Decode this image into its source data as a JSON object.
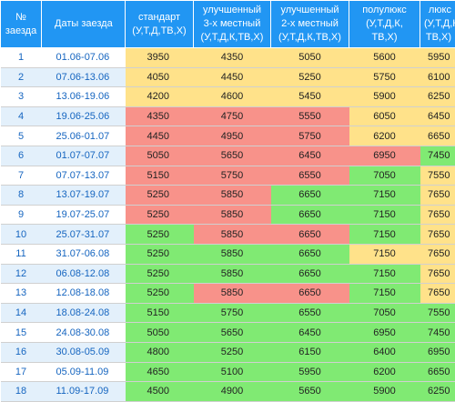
{
  "colors": {
    "header": "#2196f3",
    "yellow": "#ffe28a",
    "red": "#f8928a",
    "green": "#80ea73",
    "zebra": "#e3f0fb"
  },
  "headers": {
    "num": [
      "№",
      "заезда"
    ],
    "dates": "Даты заезда",
    "std": [
      "стандарт",
      "(У,Т,Д,ТВ,Х)"
    ],
    "imp3": [
      "улучшенный",
      "3-х местный",
      "(У,Т,Д,К,ТВ,Х)"
    ],
    "imp2": [
      "улучшенный",
      "2-х местный",
      "(У,Т,Д,К,ТВ,Х)"
    ],
    "semi": [
      "полулюкс",
      "(У,Т,Д,К,",
      "ТВ,Х)"
    ],
    "lux": [
      "люкс (У,Т,Д,К,",
      "ТВ,Х)"
    ]
  },
  "rows": [
    {
      "num": "1",
      "dates": "01.06-07.06",
      "std": "3950",
      "imp3": "4350",
      "imp2": "5050",
      "semi": "5600",
      "lux": "5950"
    },
    {
      "num": "2",
      "dates": "07.06-13.06",
      "std": "4050",
      "imp3": "4450",
      "imp2": "5250",
      "semi": "5750",
      "lux": "6100"
    },
    {
      "num": "3",
      "dates": "13.06-19.06",
      "std": "4200",
      "imp3": "4600",
      "imp2": "5450",
      "semi": "5900",
      "lux": "6250"
    },
    {
      "num": "4",
      "dates": "19.06-25.06",
      "std": "4350",
      "imp3": "4750",
      "imp2": "5550",
      "semi": "6050",
      "lux": "6450"
    },
    {
      "num": "5",
      "dates": "25.06-01.07",
      "std": "4450",
      "imp3": "4950",
      "imp2": "5750",
      "semi": "6200",
      "lux": "6650"
    },
    {
      "num": "6",
      "dates": "01.07-07.07",
      "std": "5050",
      "imp3": "5650",
      "imp2": "6450",
      "semi": "6950",
      "lux": "7450"
    },
    {
      "num": "7",
      "dates": "07.07-13.07",
      "std": "5150",
      "imp3": "5750",
      "imp2": "6550",
      "semi": "7050",
      "lux": "7550"
    },
    {
      "num": "8",
      "dates": "13.07-19.07",
      "std": "5250",
      "imp3": "5850",
      "imp2": "6650",
      "semi": "7150",
      "lux": "7650"
    },
    {
      "num": "9",
      "dates": "19.07-25.07",
      "std": "5250",
      "imp3": "5850",
      "imp2": "6650",
      "semi": "7150",
      "lux": "7650"
    },
    {
      "num": "10",
      "dates": "25.07-31.07",
      "std": "5250",
      "imp3": "5850",
      "imp2": "6650",
      "semi": "7150",
      "lux": "7650"
    },
    {
      "num": "11",
      "dates": "31.07-06.08",
      "std": "5250",
      "imp3": "5850",
      "imp2": "6650",
      "semi": "7150",
      "lux": "7650"
    },
    {
      "num": "12",
      "dates": "06.08-12.08",
      "std": "5250",
      "imp3": "5850",
      "imp2": "6650",
      "semi": "7150",
      "lux": "7650"
    },
    {
      "num": "13",
      "dates": "12.08-18.08",
      "std": "5250",
      "imp3": "5850",
      "imp2": "6650",
      "semi": "7150",
      "lux": "7650"
    },
    {
      "num": "14",
      "dates": "18.08-24.08",
      "std": "5150",
      "imp3": "5750",
      "imp2": "6550",
      "semi": "7050",
      "lux": "7550"
    },
    {
      "num": "15",
      "dates": "24.08-30.08",
      "std": "5050",
      "imp3": "5650",
      "imp2": "6450",
      "semi": "6950",
      "lux": "7450"
    },
    {
      "num": "16",
      "dates": "30.08-05.09",
      "std": "4800",
      "imp3": "5250",
      "imp2": "6150",
      "semi": "6400",
      "lux": "6950"
    },
    {
      "num": "17",
      "dates": "05.09-11.09",
      "std": "4650",
      "imp3": "5100",
      "imp2": "5950",
      "semi": "6200",
      "lux": "6650"
    },
    {
      "num": "18",
      "dates": "11.09-17.09",
      "std": "4500",
      "imp3": "4900",
      "imp2": "5650",
      "semi": "5900",
      "lux": "6250"
    }
  ]
}
